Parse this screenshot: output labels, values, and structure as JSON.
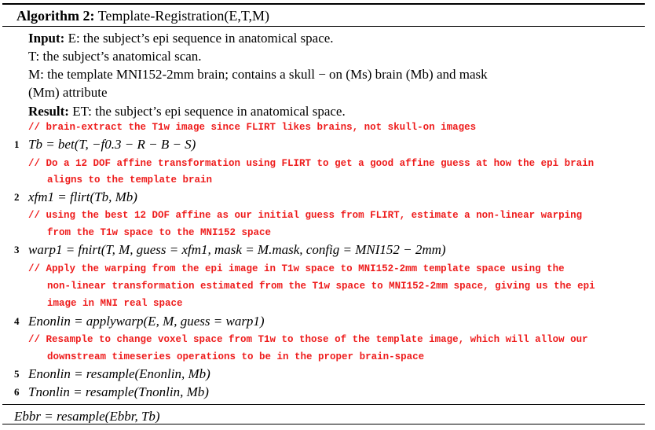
{
  "algorithm": {
    "label": "Algorithm 2:",
    "name": "Template-Registration(E,T,M)"
  },
  "header": {
    "input_label": "Input:",
    "input_text": "E: the subject’s epi sequence in anatomical space.",
    "t_text": "T: the subject’s anatomical scan.",
    "m_text": "M: the template MNI152-2mm brain; contains a skull − on (Ms) brain (Mb) and mask",
    "m_text_cont": "(Mm) attribute",
    "result_label": "Result:",
    "result_text": "ET: the subject’s epi sequence in anatomical space."
  },
  "steps": [
    {
      "comment": [
        "// brain-extract the T1w image since FLIRT likes brains, not skull-on images"
      ],
      "number": "1",
      "code": "Tb = bet(T, −f0.3 − R − B − S)"
    },
    {
      "comment": [
        "// Do a 12 DOF affine transformation using FLIRT to get a good affine guess at how the epi brain",
        "aligns to the template brain"
      ],
      "number": "2",
      "code": "xfm1 = flirt(Tb, Mb)"
    },
    {
      "comment": [
        "// using the best 12 DOF affine as our initial guess from FLIRT, estimate a non-linear warping",
        "from the T1w space to the MNI152 space"
      ],
      "number": "3",
      "code": "warp1 = fnirt(T, M, guess = xfm1, mask = M.mask, config = MNI152 − 2mm)"
    },
    {
      "comment": [
        "// Apply the warping from the epi image in T1w space to MNI152-2mm template space using the",
        "non-linear transformation estimated from the T1w space to MNI152-2mm space, giving us the epi",
        "image in MNI real space"
      ],
      "number": "4",
      "code": "Enonlin = applywarp(E, M, guess = warp1)"
    },
    {
      "comment": [
        "// Resample to change voxel space from T1w to those of the template image, which will allow our",
        "downstream timeseries operations to be in the proper brain-space"
      ],
      "number": "5",
      "code": "Enonlin = resample(Enonlin, Mb)"
    },
    {
      "comment": [],
      "number": "6",
      "code": "Tnonlin = resample(Tnonlin, Mb)"
    }
  ],
  "clipped_line": "Ebbr = resample(Ebbr, Tb)"
}
